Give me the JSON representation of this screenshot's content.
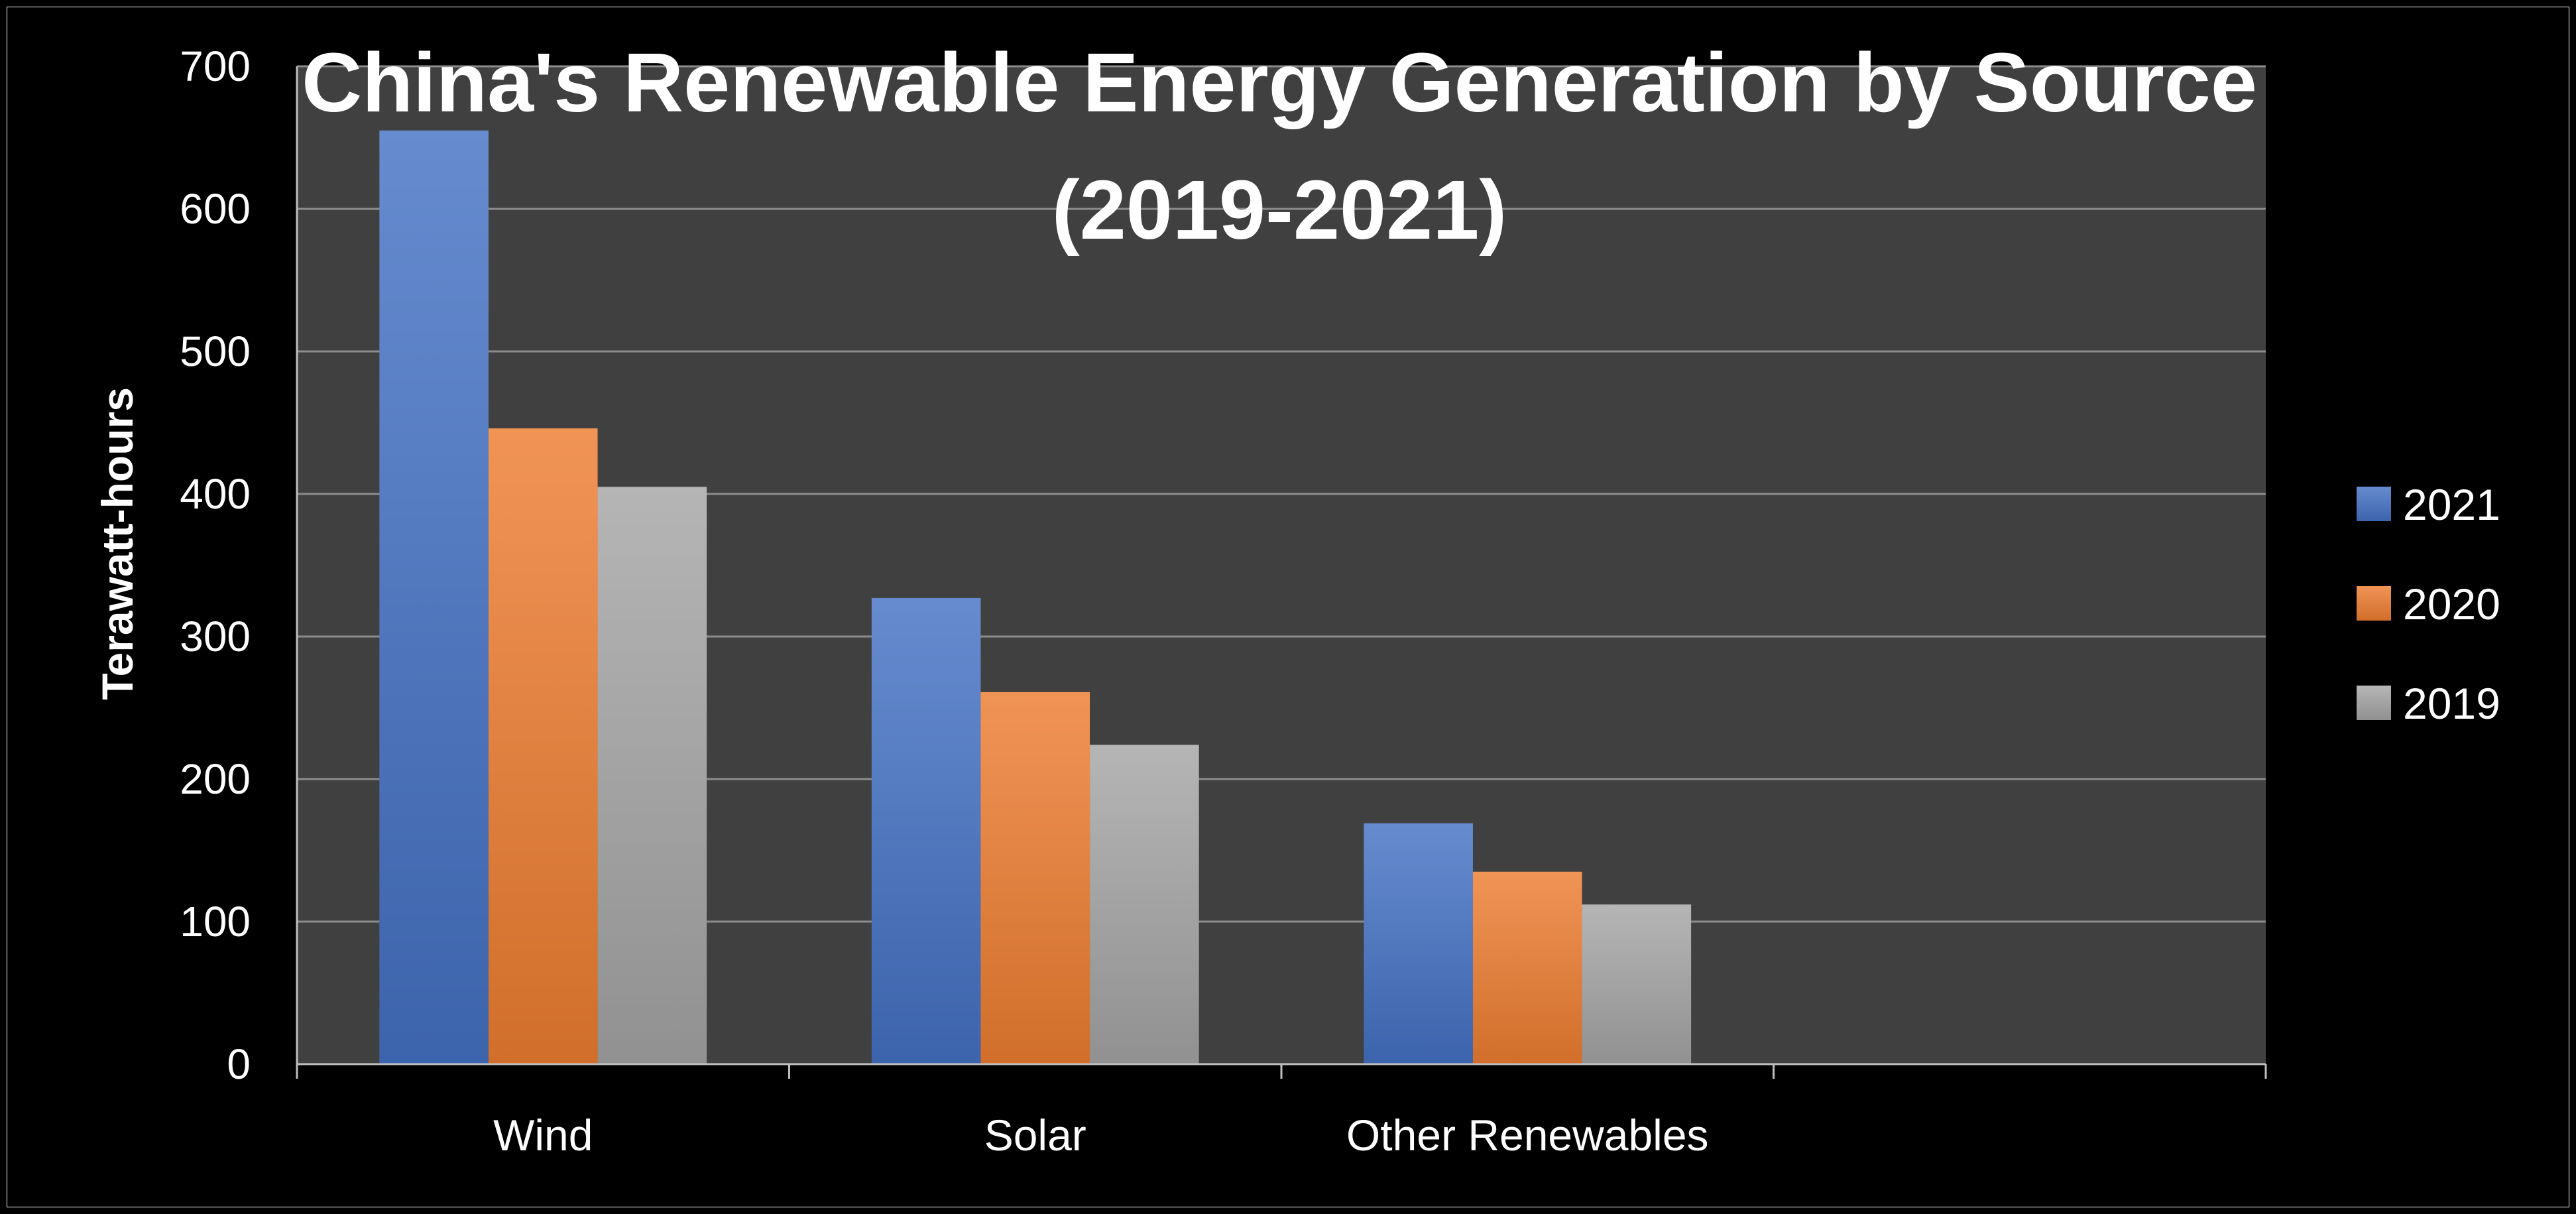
{
  "chart_data": {
    "type": "bar",
    "title": "China's Renewable Energy Generation by Source",
    "subtitle": "(2019-2021)",
    "xlabel": "",
    "ylabel": "Terawatt-hours",
    "categories": [
      "Wind",
      "Solar",
      "Other Renewables",
      ""
    ],
    "series": [
      {
        "name": "2021",
        "values": [
          655,
          327,
          169,
          null
        ],
        "color": "#4472C4"
      },
      {
        "name": "2020",
        "values": [
          446,
          261,
          135,
          null
        ],
        "color": "#ED7D31"
      },
      {
        "name": "2019",
        "values": [
          405,
          224,
          112,
          null
        ],
        "color": "#A5A5A5"
      }
    ],
    "ylim": [
      0,
      700
    ],
    "yticks": [
      0,
      100,
      200,
      300,
      400,
      500,
      600,
      700
    ],
    "grid": true,
    "legend_position": "right",
    "plot_background": "#404040",
    "page_background": "#000000"
  }
}
